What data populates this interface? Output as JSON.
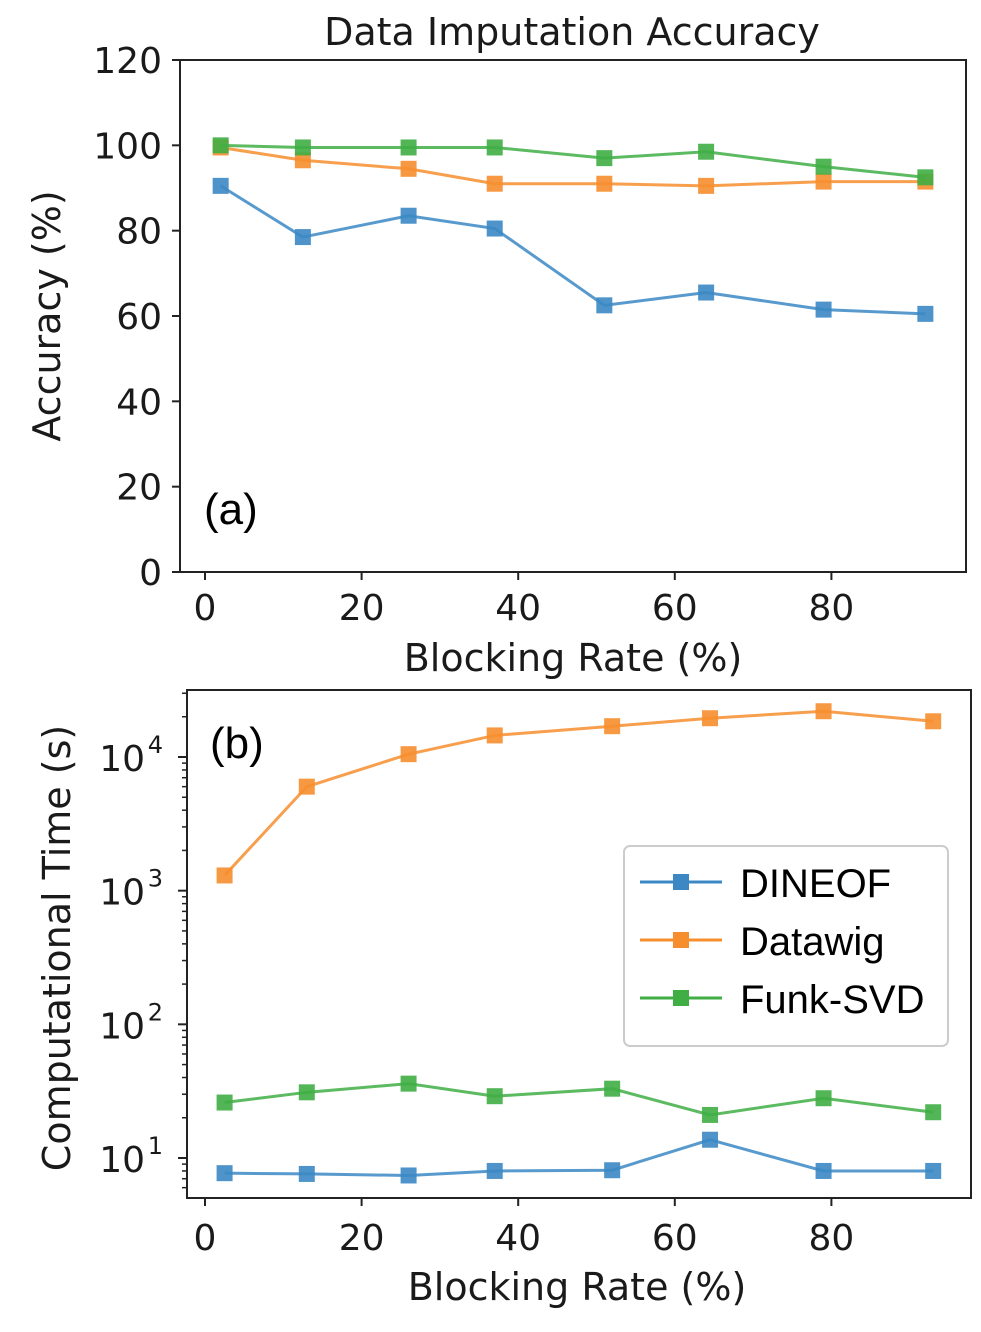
{
  "colors": {
    "DINEOF": "#3b88c4",
    "Datawig": "#f68e2e",
    "Funk-SVD": "#3fae45"
  },
  "chart_data": [
    {
      "type": "line",
      "title": "Data Imputation Accuracy",
      "panel_label": "(a)",
      "xlabel": "Blocking Rate (%)",
      "ylabel": "Accuracy (%)",
      "xlim": [
        -2,
        98
      ],
      "ylim": [
        0,
        120
      ],
      "xticks": [
        0,
        20,
        40,
        60,
        80
      ],
      "yticks": [
        0,
        20,
        40,
        60,
        80,
        100,
        120
      ],
      "x": [
        2,
        12.5,
        26,
        37,
        51,
        64,
        79,
        92
      ],
      "series": [
        {
          "name": "DINEOF",
          "values": [
            90.5,
            78.5,
            83.5,
            80.5,
            62.5,
            65.5,
            61.5,
            60.5
          ]
        },
        {
          "name": "Datawig",
          "values": [
            99.5,
            96.5,
            94.5,
            91,
            91,
            90.5,
            91.5,
            91.5
          ]
        },
        {
          "name": "Funk-SVD",
          "values": [
            100,
            99.5,
            99.5,
            99.5,
            97,
            98.5,
            95,
            92.5
          ]
        }
      ]
    },
    {
      "type": "line",
      "yscale": "log",
      "panel_label": "(b)",
      "xlabel": "Blocking Rate (%)",
      "ylabel": "Computational Time (s)",
      "xlim": [
        -2,
        98
      ],
      "ylim": [
        5,
        30000
      ],
      "xticks": [
        0,
        20,
        40,
        60,
        80
      ],
      "yticks": [
        10,
        100,
        1000,
        10000
      ],
      "ytick_exponents": [
        "1",
        "2",
        "3",
        "4"
      ],
      "ytick_base": "10",
      "x": [
        2.5,
        13,
        26,
        37,
        52,
        64.5,
        79,
        93
      ],
      "series": [
        {
          "name": "DINEOF",
          "values": [
            7.7,
            7.6,
            7.4,
            8,
            8.1,
            13.7,
            8,
            8
          ]
        },
        {
          "name": "Datawig",
          "values": [
            1300,
            6000,
            10500,
            14500,
            17000,
            19500,
            22000,
            18500
          ]
        },
        {
          "name": "Funk-SVD",
          "values": [
            26,
            31,
            36,
            29,
            33,
            21,
            28,
            22
          ]
        }
      ],
      "legend": {
        "position": "right",
        "entries": [
          "DINEOF",
          "Datawig",
          "Funk-SVD"
        ]
      }
    }
  ]
}
